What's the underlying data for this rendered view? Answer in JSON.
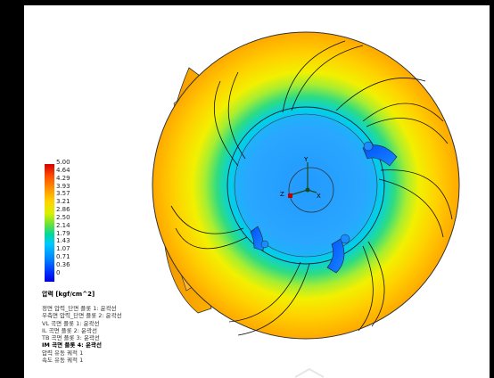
{
  "legend": {
    "ticks": [
      "5.00",
      "4.64",
      "4.29",
      "3.93",
      "3.57",
      "3.21",
      "2.86",
      "2.50",
      "2.14",
      "1.79",
      "1.43",
      "1.07",
      "0.71",
      "0.36",
      "0"
    ],
    "unit_label": "압력 [kgf/cm^2]",
    "plots": [
      "정면 압력_단면 플롯 1: 윤곽선",
      "우측면 압력_단면 플롯 2: 윤곽선",
      "VL 곡면 플롯 1: 윤곽선",
      "IL 곡면 플롯 2: 윤곽선",
      "TB 곡면 플롯 3: 윤곽선",
      "IM 곡면 플롯 4: 윤곽선",
      "압력 유동 궤적 1",
      "속도 유동 궤적 1"
    ],
    "active_plot_index": 5
  },
  "triad": {
    "x": "X",
    "y": "Y",
    "z": "Z"
  },
  "colors": {
    "max": "#d40000",
    "high": "#ff9a00",
    "mid": "#60e040",
    "low_cyan": "#00c8ff",
    "min": "#0000e0",
    "background": "#ffffff",
    "frame": "#000000"
  },
  "icons": {
    "triad": "coordinate-triad-icon",
    "watermark": "watermark-mark-icon"
  }
}
